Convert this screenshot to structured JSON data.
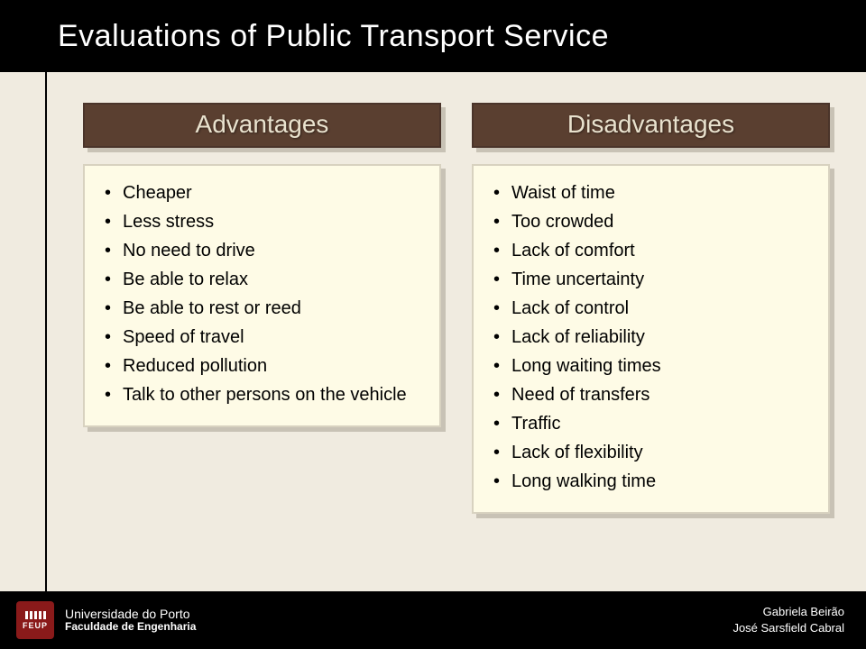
{
  "title": "Evaluations of Public Transport Service",
  "columns": {
    "left": {
      "heading": "Advantages",
      "items": [
        "Cheaper",
        "Less stress",
        "No need to drive",
        "Be able to relax",
        "Be able to rest or reed",
        "Speed of travel",
        "Reduced pollution",
        "Talk to other persons on the vehicle"
      ]
    },
    "right": {
      "heading": "Disadvantages",
      "items": [
        "Waist of time",
        "Too crowded",
        "Lack of comfort",
        "Time uncertainty",
        "Lack of control",
        "Lack of reliability",
        "Long waiting times",
        "Need of transfers",
        "Traffic",
        "Lack of flexibility",
        "Long walking time"
      ]
    }
  },
  "footer": {
    "logo_abbr": "FEUP",
    "university": "Universidade do Porto",
    "faculty": "Faculdade de Engenharia",
    "authors": [
      "Gabriela Beirão",
      "José Sarsfield Cabral"
    ]
  },
  "style": {
    "page_bg": "#f0ebe0",
    "header_bg": "#5a3f30",
    "header_text": "#e9e2ce",
    "panel_bg": "#fefbe6",
    "shadow_color": "#c8c2b5",
    "title_bg": "#000000",
    "title_text": "#ffffff",
    "logo_bg": "#8a1a1a",
    "title_fontsize": 34,
    "heading_fontsize": 28,
    "body_fontsize": 20
  }
}
